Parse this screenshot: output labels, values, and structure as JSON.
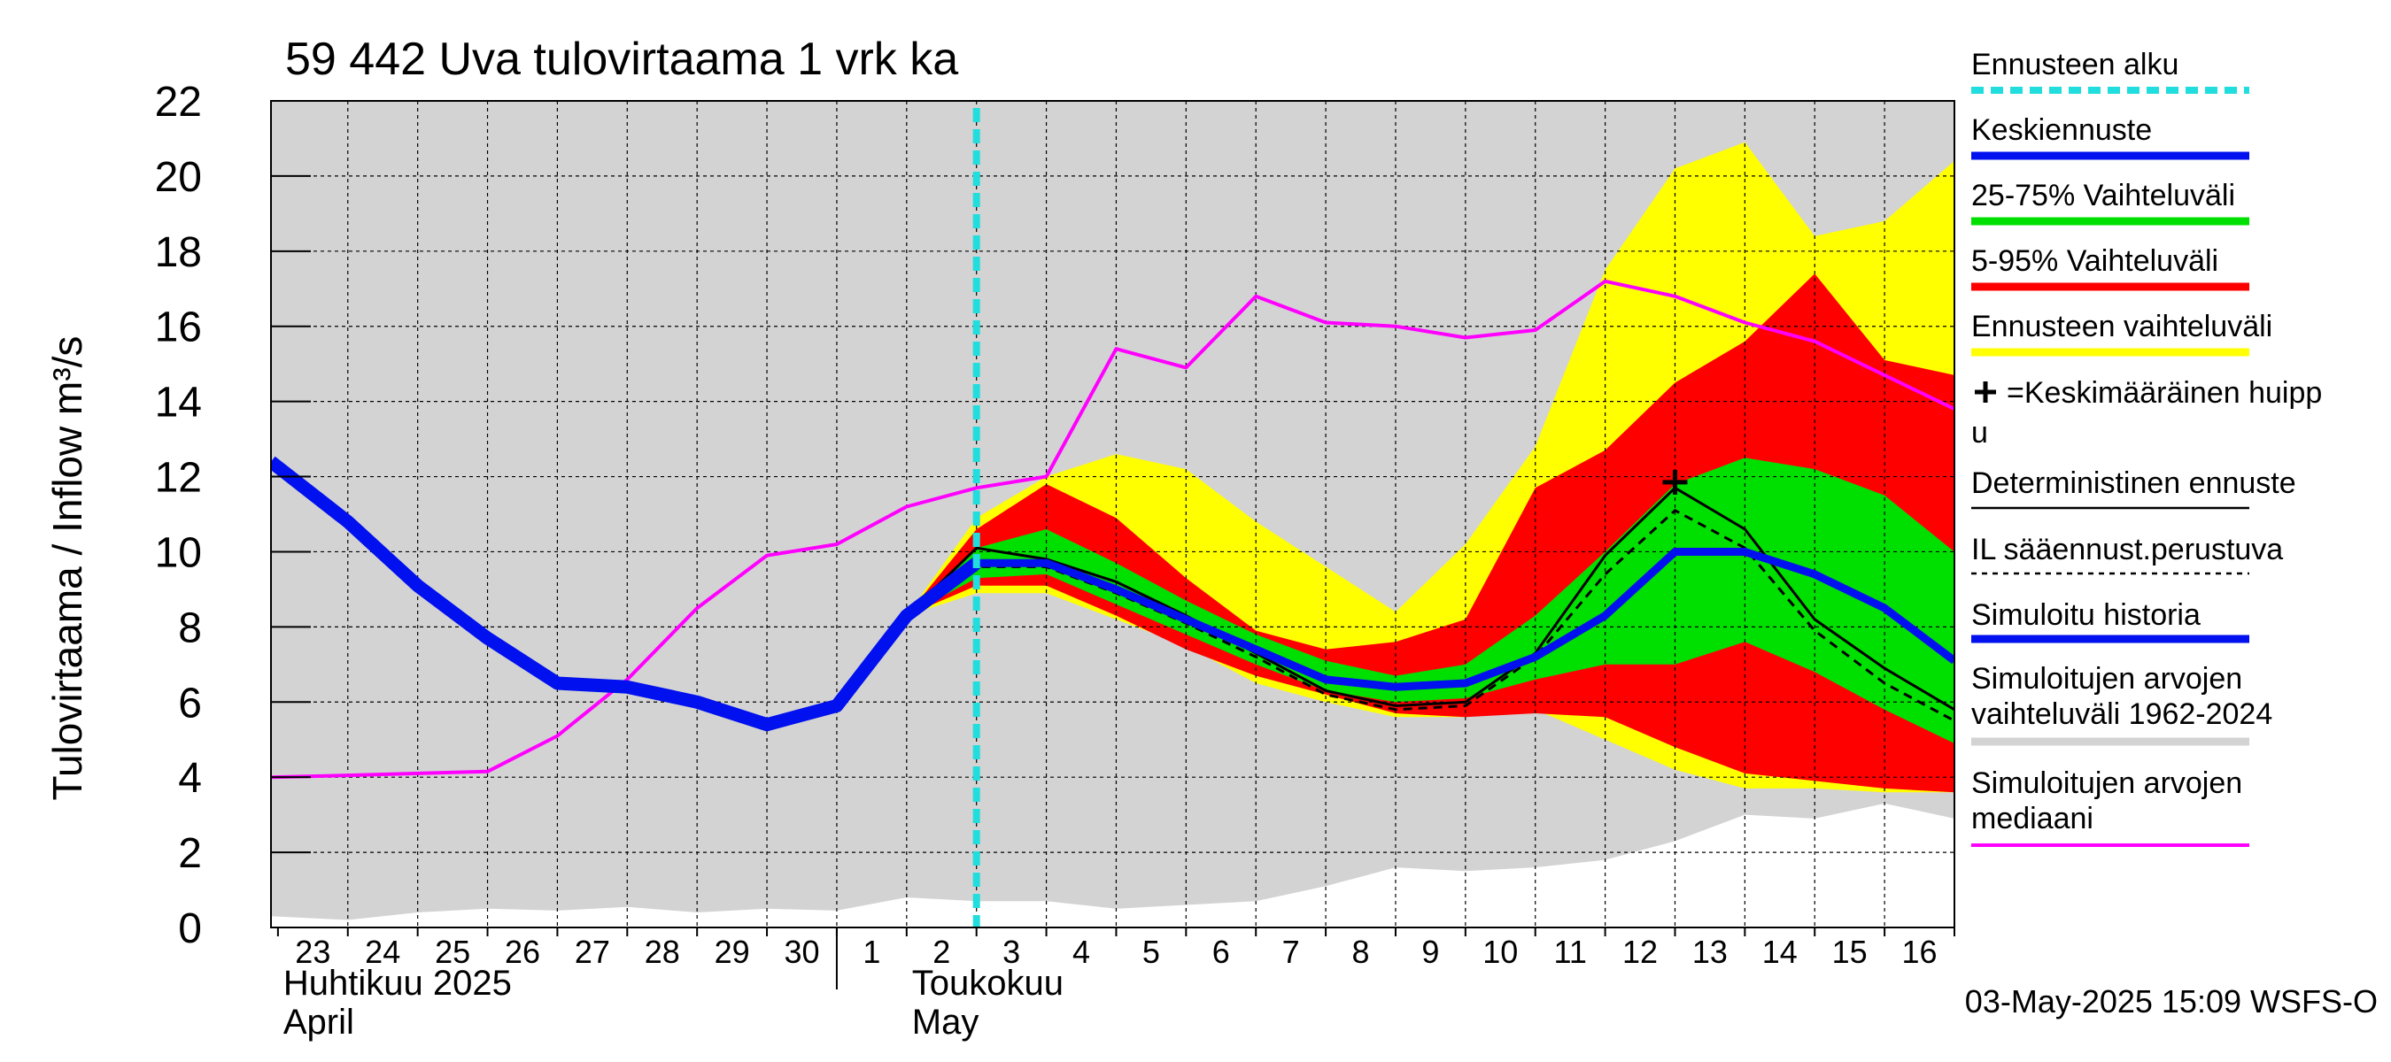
{
  "chart_data": {
    "type": "area",
    "title": "59 442 Uva tulovirtaama 1 vrk ka",
    "ylabel": "Tulovirtaama / Inflow    m³/s",
    "ylim": [
      0,
      22
    ],
    "y_ticks": [
      0,
      2,
      4,
      6,
      8,
      10,
      12,
      14,
      16,
      18,
      20,
      22
    ],
    "x_range": [
      -0.1,
      24
    ],
    "day_labels": [
      "23",
      "24",
      "25",
      "26",
      "27",
      "28",
      "29",
      "30",
      "1",
      "2",
      "3",
      "4",
      "5",
      "6",
      "7",
      "8",
      "9",
      "10",
      "11",
      "12",
      "13",
      "14",
      "15",
      "16"
    ],
    "month_labels": [
      {
        "fi": "Huhtikuu  2025",
        "en": "April",
        "x": 0
      },
      {
        "fi": "Toukokuu",
        "en": "May",
        "x": 9
      }
    ],
    "month_divider_x": 8,
    "forecast_start_x": 10,
    "timestamp": "03-May-2025 15:09 WSFS-O",
    "colors": {
      "hist_range": "#d3d3d3",
      "ens_range": "#ffff00",
      "p5_95": "#ff0000",
      "p25_75": "#00e000",
      "mean": "#0010ee",
      "median": "#ff00ff",
      "forecast_line": "#22dddd",
      "black": "#000000"
    },
    "x": [
      -0.1,
      1,
      2,
      3,
      4,
      5,
      6,
      7,
      8,
      9,
      10,
      11,
      12,
      13,
      14,
      15,
      16,
      17,
      18,
      19,
      20,
      21,
      22,
      23,
      24
    ],
    "series": {
      "hist_range": {
        "x": [
          -0.1,
          1,
          2,
          3,
          4,
          5,
          6,
          7,
          8,
          9,
          10,
          11,
          12,
          13,
          14,
          15,
          16,
          17,
          18,
          19,
          20,
          21,
          22,
          23,
          24
        ],
        "lower": [
          0.3,
          0.2,
          0.4,
          0.5,
          0.45,
          0.55,
          0.4,
          0.5,
          0.45,
          0.8,
          0.7,
          0.7,
          0.5,
          0.6,
          0.7,
          1.1,
          1.6,
          1.5,
          1.6,
          1.8,
          2.3,
          3.0,
          2.9,
          3.3,
          2.9
        ],
        "upper": [
          22,
          22,
          22,
          22,
          22,
          22,
          22,
          22,
          22,
          22,
          22,
          22,
          22,
          22,
          22,
          22,
          22,
          22,
          22,
          22,
          22,
          22,
          22,
          22,
          22
        ]
      },
      "ens_range": {
        "x": [
          9,
          10,
          11,
          12,
          13,
          14,
          15,
          16,
          17,
          18,
          19,
          20,
          21,
          22,
          23,
          24
        ],
        "lower": [
          8.3,
          8.9,
          8.9,
          8.2,
          7.5,
          6.5,
          6.0,
          5.6,
          5.6,
          5.8,
          5.0,
          4.2,
          3.7,
          3.7,
          3.6,
          3.6
        ],
        "upper": [
          8.3,
          10.9,
          12.0,
          12.6,
          12.2,
          10.8,
          9.6,
          8.4,
          10.2,
          12.8,
          17.5,
          20.2,
          20.9,
          18.4,
          18.8,
          20.4
        ]
      },
      "p5_95": {
        "x": [
          9,
          10,
          11,
          12,
          13,
          14,
          15,
          16,
          17,
          18,
          19,
          20,
          21,
          22,
          23,
          24
        ],
        "lower": [
          8.3,
          9.1,
          9.1,
          8.3,
          7.4,
          6.7,
          6.2,
          5.7,
          5.6,
          5.7,
          5.6,
          4.8,
          4.1,
          3.9,
          3.7,
          3.6
        ],
        "upper": [
          8.3,
          10.6,
          11.8,
          10.9,
          9.3,
          7.9,
          7.4,
          7.6,
          8.2,
          11.7,
          12.7,
          14.5,
          15.6,
          17.4,
          15.1,
          14.7
        ]
      },
      "p25_75": {
        "x": [
          9,
          10,
          11,
          12,
          13,
          14,
          15,
          16,
          17,
          18,
          19,
          20,
          21,
          22,
          23,
          24
        ],
        "lower": [
          8.3,
          9.3,
          9.4,
          8.6,
          7.8,
          7.0,
          6.3,
          6.0,
          6.1,
          6.6,
          7.0,
          7.0,
          7.6,
          6.8,
          5.8,
          4.9
        ],
        "upper": [
          8.3,
          10.1,
          10.6,
          9.7,
          8.7,
          7.8,
          7.1,
          6.7,
          7.0,
          8.3,
          10.0,
          11.8,
          12.5,
          12.2,
          11.5,
          10.0
        ]
      },
      "deterministic": {
        "x": [
          9,
          10,
          11,
          12,
          13,
          14,
          15,
          16,
          17,
          18,
          19,
          20,
          21,
          22,
          23,
          24
        ],
        "values": [
          8.3,
          10.1,
          9.8,
          9.2,
          8.3,
          7.3,
          6.3,
          5.9,
          6.0,
          7.3,
          9.9,
          11.7,
          10.6,
          8.2,
          6.9,
          5.8
        ]
      },
      "il_forecast": {
        "x": [
          9,
          10,
          11,
          12,
          13,
          14,
          15,
          16,
          17,
          18,
          19,
          20,
          21,
          22,
          23,
          24
        ],
        "values": [
          8.3,
          9.6,
          9.6,
          8.9,
          8.1,
          7.2,
          6.2,
          5.8,
          5.9,
          7.2,
          9.4,
          11.1,
          10.1,
          7.9,
          6.5,
          5.5
        ]
      },
      "mean": {
        "x": [
          9,
          10,
          11,
          12,
          13,
          14,
          15,
          16,
          17,
          18,
          19,
          20,
          21,
          22,
          23,
          24
        ],
        "values": [
          8.3,
          9.7,
          9.7,
          9.0,
          8.2,
          7.4,
          6.6,
          6.4,
          6.5,
          7.2,
          8.3,
          10.0,
          10.0,
          9.4,
          8.5,
          7.1
        ]
      },
      "simulated_history": {
        "x": [
          -0.1,
          1,
          2,
          3,
          4,
          5,
          6,
          7,
          8,
          9,
          10
        ],
        "values": [
          12.4,
          10.8,
          9.1,
          7.7,
          6.5,
          6.4,
          6.0,
          5.4,
          5.9,
          8.3,
          9.7
        ]
      },
      "median": {
        "x": [
          -0.1,
          1,
          2,
          3,
          4,
          5,
          6,
          7,
          8,
          9,
          10,
          11,
          12,
          13,
          14,
          15,
          16,
          17,
          18,
          19,
          20,
          21,
          22,
          23,
          24
        ],
        "values": [
          4.0,
          4.05,
          4.1,
          4.15,
          5.1,
          6.6,
          8.5,
          9.9,
          10.2,
          11.2,
          11.7,
          12.0,
          15.4,
          14.9,
          16.8,
          16.1,
          16.0,
          15.7,
          15.9,
          17.2,
          16.8,
          16.1,
          15.6,
          14.7,
          13.8
        ]
      },
      "mean_peak": {
        "x": 20,
        "y": 11.85
      }
    },
    "legend": [
      {
        "label": "Ennusteen alku",
        "type": "dashed",
        "color": "#22dddd"
      },
      {
        "label": "Keskiennuste",
        "type": "thick",
        "color": "#0010ee"
      },
      {
        "label": "25-75% Vaihteluväli",
        "type": "thick",
        "color": "#00e000"
      },
      {
        "label": "5-95% Vaihteluväli",
        "type": "thick",
        "color": "#ff0000"
      },
      {
        "label": "Ennusteen vaihteluväli",
        "type": "thick",
        "color": "#ffff00"
      },
      {
        "label": "=Keskimääräinen huipp",
        "label2": "u",
        "type": "peak",
        "color": "#000000"
      },
      {
        "label": "Deterministinen ennuste",
        "type": "thin",
        "color": "#000000"
      },
      {
        "label": "IL sääennust.perustuva",
        "type": "dotted",
        "color": "#000000"
      },
      {
        "label": "Simuloitu historia",
        "type": "thick",
        "color": "#0010ee"
      },
      {
        "label": "Simuloitujen arvojen",
        "label2": "vaihteluväli 1962-2024",
        "type": "thick",
        "color": "#d3d3d3"
      },
      {
        "label": "Simuloitujen arvojen",
        "label2": "mediaani",
        "type": "medium",
        "color": "#ff00ff"
      }
    ]
  }
}
